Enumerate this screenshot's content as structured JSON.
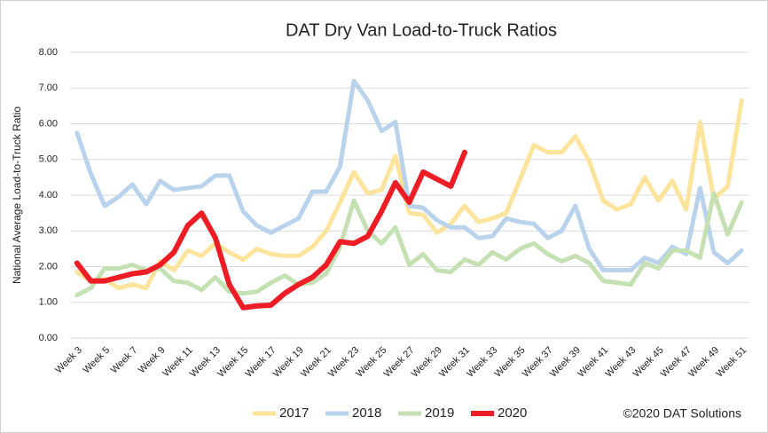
{
  "chart_data": {
    "type": "line",
    "title": "DAT Dry Van Load-to-Truck Ratios",
    "y_label": "National Average Load-to-Truck Ratio",
    "annotation": "©2020 DAT Solutions",
    "categories": [
      "Week 3",
      null,
      "Week 5",
      null,
      "Week 7",
      null,
      "Week 9",
      null,
      "Week 11",
      null,
      "Week 13",
      null,
      "Week 15",
      null,
      "Week 17",
      null,
      "Week 19",
      null,
      "Week 21",
      null,
      "Week 23",
      null,
      "Week 25",
      null,
      "Week 27",
      null,
      "Week 29",
      null,
      "Week 31",
      null,
      "Week 33",
      null,
      "Week 35",
      null,
      "Week 37",
      null,
      "Week 39",
      null,
      "Week 41",
      null,
      "Week 43",
      null,
      "Week 45",
      null,
      "Week 47",
      null,
      "Week 49",
      null,
      "Week 51"
    ],
    "series": [
      {
        "name": "2017",
        "color": "#fde49c",
        "values": [
          1.85,
          1.6,
          1.65,
          1.4,
          1.5,
          1.4,
          2.15,
          1.9,
          2.45,
          2.3,
          2.65,
          2.4,
          2.2,
          2.5,
          2.35,
          2.3,
          2.3,
          2.55,
          3.0,
          3.8,
          4.65,
          4.05,
          4.15,
          5.1,
          3.5,
          3.45,
          2.95,
          3.2,
          3.7,
          3.25,
          3.35,
          3.5,
          4.45,
          5.4,
          5.2,
          5.2,
          5.65,
          4.95,
          3.85,
          3.6,
          3.75,
          4.5,
          3.85,
          4.4,
          3.6,
          6.05,
          3.9,
          4.25,
          6.65
        ]
      },
      {
        "name": "2018",
        "color": "#b9d3ec",
        "values": [
          5.75,
          4.6,
          3.7,
          3.95,
          4.3,
          3.75,
          4.4,
          4.15,
          4.2,
          4.25,
          4.55,
          4.55,
          3.55,
          3.15,
          2.95,
          3.15,
          3.35,
          4.1,
          4.1,
          4.8,
          7.2,
          6.65,
          5.8,
          6.05,
          3.7,
          3.65,
          3.3,
          3.1,
          3.1,
          2.8,
          2.85,
          3.35,
          3.25,
          3.2,
          2.8,
          3.0,
          3.7,
          2.5,
          1.9,
          1.9,
          1.9,
          2.25,
          2.1,
          2.55,
          2.35,
          4.2,
          2.4,
          2.1,
          2.45
        ]
      },
      {
        "name": "2019",
        "color": "#c5e0b2",
        "values": [
          1.2,
          1.4,
          1.95,
          1.95,
          2.05,
          1.9,
          1.95,
          1.6,
          1.55,
          1.35,
          1.7,
          1.3,
          1.25,
          1.3,
          1.55,
          1.75,
          1.5,
          1.55,
          1.8,
          2.55,
          3.85,
          3.0,
          2.65,
          3.1,
          2.05,
          2.35,
          1.9,
          1.85,
          2.2,
          2.05,
          2.4,
          2.2,
          2.5,
          2.65,
          2.35,
          2.15,
          2.3,
          2.1,
          1.6,
          1.55,
          1.5,
          2.1,
          1.95,
          2.45,
          2.45,
          2.25,
          4.05,
          2.9,
          3.8
        ]
      },
      {
        "name": "2020",
        "color": "#ee1c25",
        "values": [
          2.1,
          1.6,
          1.6,
          1.7,
          1.8,
          1.85,
          2.05,
          2.4,
          3.15,
          3.5,
          2.8,
          1.5,
          0.85,
          0.9,
          0.92,
          1.25,
          1.5,
          1.7,
          2.05,
          2.7,
          2.65,
          2.85,
          3.55,
          4.35,
          3.8,
          4.65,
          4.45,
          4.25,
          5.2,
          null,
          null,
          null,
          null,
          null,
          null,
          null,
          null,
          null,
          null,
          null,
          null,
          null,
          null,
          null,
          null,
          null,
          null,
          null,
          null
        ]
      }
    ],
    "ylim": [
      0,
      8
    ],
    "yticks": [
      {
        "value": 0,
        "label": "0.00"
      },
      {
        "value": 1,
        "label": "1.00"
      },
      {
        "value": 2,
        "label": "2.00"
      },
      {
        "value": 3,
        "label": "3.00"
      },
      {
        "value": 4,
        "label": "4.00"
      },
      {
        "value": 5,
        "label": "5.00"
      },
      {
        "value": 6,
        "label": "6.00"
      },
      {
        "value": 7,
        "label": "7.00"
      },
      {
        "value": 8,
        "label": "8.00"
      }
    ],
    "grid": true,
    "legend": "bottom"
  }
}
